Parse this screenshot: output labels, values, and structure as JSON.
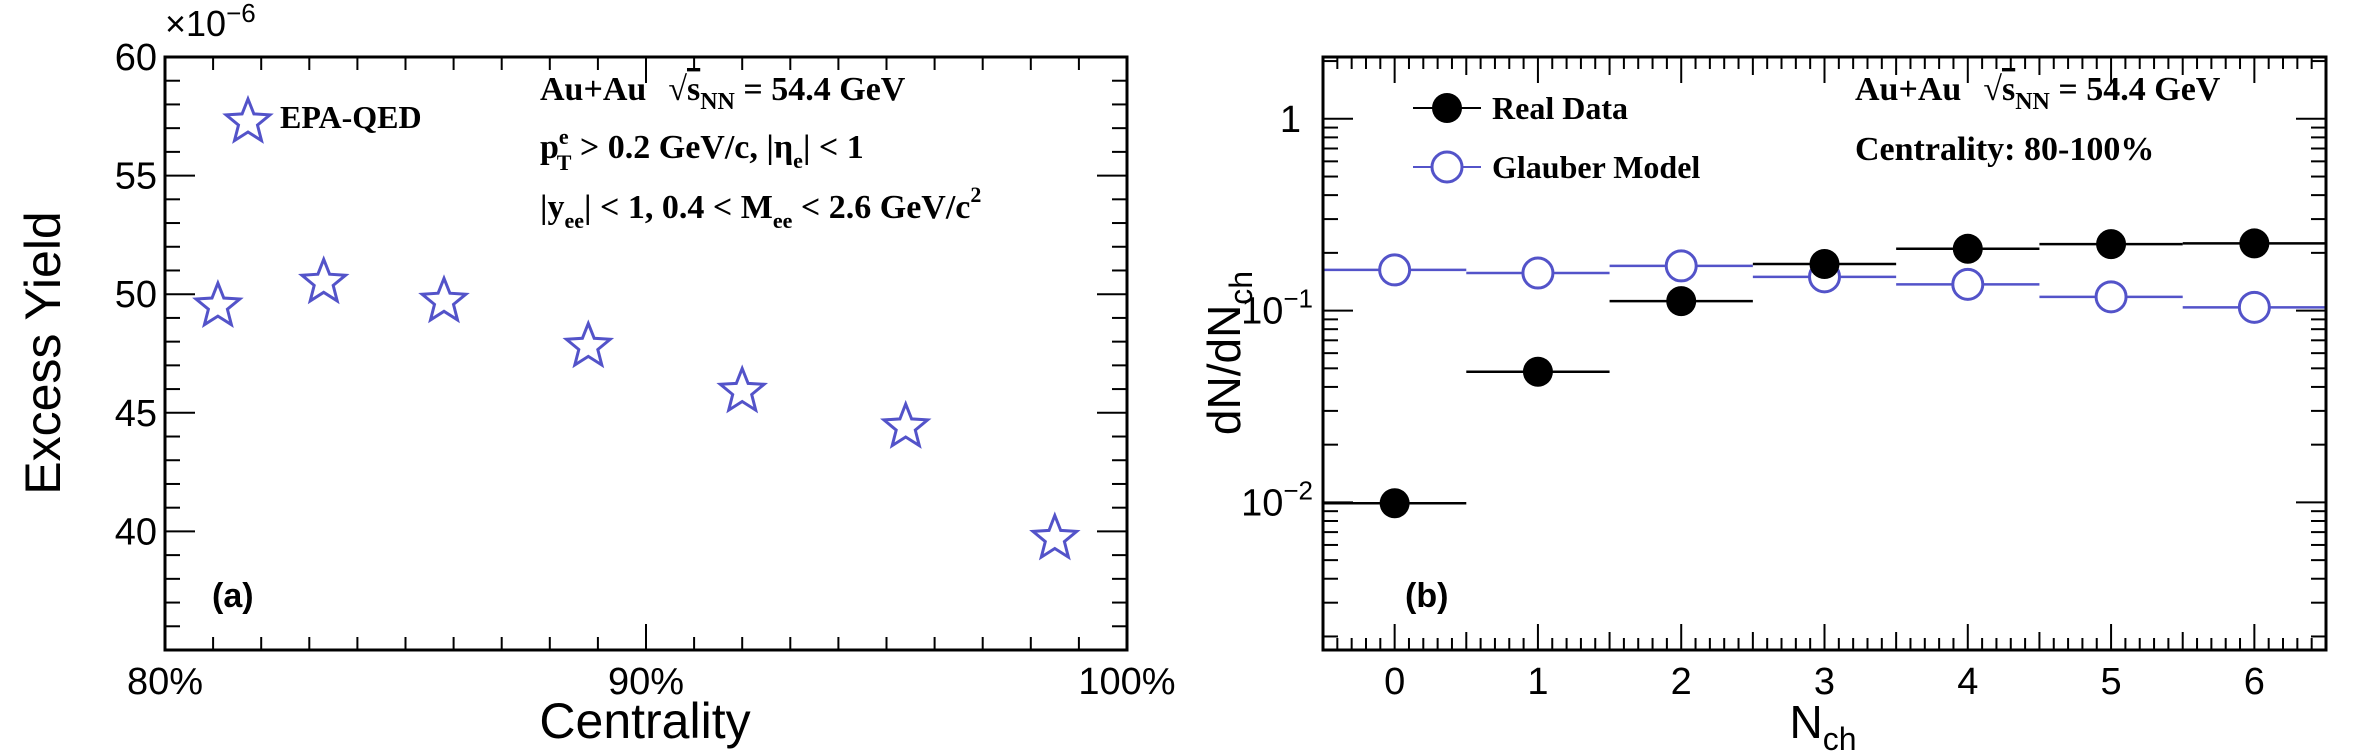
{
  "chart_data": [
    {
      "type": "scatter",
      "panel_label": "(a)",
      "xlabel": "Centrality",
      "ylabel": "Excess Yield",
      "y_multiplier": "×10",
      "y_multiplier_exponent": "−6",
      "xlim": [
        80,
        100
      ],
      "ylim": [
        35,
        60
      ],
      "x_ticks": [
        80,
        90,
        100
      ],
      "x_tick_labels": [
        "80%",
        "90%",
        "100%"
      ],
      "y_ticks": [
        40,
        45,
        50,
        55,
        60
      ],
      "y_tick_labels": [
        "40",
        "45",
        "50",
        "55",
        "60"
      ],
      "series": [
        {
          "name": "EPA-QED",
          "color": "#5353c9",
          "marker": "open-star",
          "x": [
            81.1,
            83.3,
            85.8,
            88.8,
            92.0,
            95.4,
            98.5
          ],
          "y": [
            49.5,
            50.5,
            49.7,
            47.8,
            45.9,
            44.4,
            39.7
          ]
        }
      ],
      "annotations": {
        "line1": {
          "a": "Au+Au",
          "b": "s",
          "c": "NN",
          "d": " = 54.4 GeV"
        },
        "line2": {
          "a": "p",
          "b": "e",
          "c": "T",
          "d": " > 0.2 GeV/c,  |η",
          "e": "e",
          "f": "| < 1"
        },
        "line3": {
          "a": "|y",
          "b": "ee",
          "c": "| < 1,  0.4 < M",
          "d": "ee",
          "e": " < 2.6 GeV/c",
          "f": "2"
        }
      },
      "legend_position": "top-left",
      "grid": false
    },
    {
      "type": "scatter",
      "panel_label": "(b)",
      "xlabel": "N",
      "xlabel_sub": "ch",
      "ylabel": "dN/dN",
      "ylabel_sub": "ch",
      "y_scale": "log",
      "xlim": [
        -0.5,
        6.5
      ],
      "ylim": [
        0.0017,
        2.1
      ],
      "x_ticks": [
        0,
        1,
        2,
        3,
        4,
        5,
        6
      ],
      "x_tick_labels": [
        "0",
        "1",
        "2",
        "3",
        "4",
        "5",
        "6"
      ],
      "y_ticks": [
        0.01,
        0.1,
        1
      ],
      "y_tick_labels": [
        {
          "base": "10",
          "exp": "−2"
        },
        {
          "base": "10",
          "exp": "−1"
        },
        {
          "base": "1",
          "exp": ""
        }
      ],
      "series": [
        {
          "name": "Real Data",
          "color": "#000000",
          "marker": "filled-circle",
          "x": [
            0,
            1,
            2,
            3,
            4,
            5,
            6
          ],
          "y": [
            0.0099,
            0.048,
            0.112,
            0.175,
            0.21,
            0.222,
            0.224
          ]
        },
        {
          "name": "Glauber Model",
          "color": "#5353c9",
          "marker": "open-circle",
          "x": [
            0,
            1,
            2,
            3,
            4,
            5,
            6
          ],
          "y": [
            0.163,
            0.157,
            0.171,
            0.15,
            0.137,
            0.118,
            0.104
          ]
        }
      ],
      "annotations": {
        "line1": {
          "a": "Au+Au",
          "b": "s",
          "c": "NN",
          "d": " = 54.4 GeV"
        },
        "line2": "Centrality: 80-100%"
      },
      "legend_position": "top-left",
      "grid": false
    }
  ]
}
